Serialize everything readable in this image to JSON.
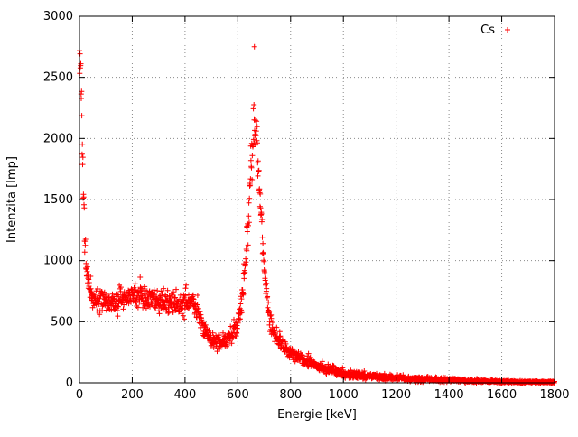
{
  "colors": {
    "background": "#ffffff",
    "border": "#000000",
    "grid": "#8a8a8a",
    "points": "#ff0000",
    "text": "#000000"
  },
  "chart_data": {
    "type": "scatter",
    "title": "",
    "xlabel": "Energie [keV]",
    "ylabel": "Intenzita [Imp]",
    "xlim": [
      0,
      1800
    ],
    "ylim": [
      0,
      3000
    ],
    "xticks": [
      0,
      200,
      400,
      600,
      800,
      1000,
      1200,
      1400,
      1600,
      1800
    ],
    "yticks": [
      0,
      500,
      1000,
      1500,
      2000,
      2500,
      3000
    ],
    "grid": true,
    "grid_style": "dotted",
    "legend_position": "top-right-inside",
    "series": [
      {
        "name": "Cs",
        "marker": "+",
        "color": "#ff0000",
        "x_step_keV": 1,
        "noise_model": "gaussian_sqrt_counts",
        "noise_sigma_scale": 1.8,
        "envelope": [
          [
            0,
            2750
          ],
          [
            5,
            2500
          ],
          [
            10,
            2000
          ],
          [
            15,
            1500
          ],
          [
            20,
            1150
          ],
          [
            25,
            950
          ],
          [
            30,
            850
          ],
          [
            40,
            760
          ],
          [
            50,
            705
          ],
          [
            80,
            660
          ],
          [
            120,
            660
          ],
          [
            160,
            685
          ],
          [
            200,
            730
          ],
          [
            240,
            705
          ],
          [
            280,
            690
          ],
          [
            320,
            665
          ],
          [
            360,
            645
          ],
          [
            390,
            640
          ],
          [
            410,
            655
          ],
          [
            425,
            660
          ],
          [
            440,
            620
          ],
          [
            450,
            580
          ],
          [
            460,
            520
          ],
          [
            470,
            465
          ],
          [
            480,
            420
          ],
          [
            500,
            360
          ],
          [
            520,
            335
          ],
          [
            540,
            330
          ],
          [
            560,
            350
          ],
          [
            580,
            395
          ],
          [
            600,
            480
          ],
          [
            615,
            650
          ],
          [
            630,
            1000
          ],
          [
            640,
            1350
          ],
          [
            650,
            1750
          ],
          [
            660,
            2050
          ],
          [
            670,
            2000
          ],
          [
            680,
            1700
          ],
          [
            690,
            1300
          ],
          [
            700,
            950
          ],
          [
            710,
            700
          ],
          [
            720,
            530
          ],
          [
            730,
            440
          ],
          [
            740,
            390
          ],
          [
            760,
            330
          ],
          [
            780,
            285
          ],
          [
            800,
            245
          ],
          [
            850,
            185
          ],
          [
            900,
            140
          ],
          [
            950,
            110
          ],
          [
            1000,
            75
          ],
          [
            1050,
            62
          ],
          [
            1100,
            52
          ],
          [
            1200,
            40
          ],
          [
            1300,
            30
          ],
          [
            1400,
            22
          ],
          [
            1500,
            15
          ],
          [
            1600,
            10
          ],
          [
            1700,
            7
          ],
          [
            1800,
            5
          ]
        ],
        "outliers": [
          [
            663,
            2750
          ]
        ]
      }
    ]
  }
}
